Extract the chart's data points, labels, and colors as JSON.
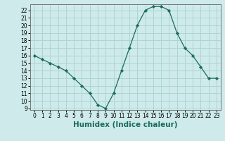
{
  "x": [
    0,
    1,
    2,
    3,
    4,
    5,
    6,
    7,
    8,
    9,
    10,
    11,
    12,
    13,
    14,
    15,
    16,
    17,
    18,
    19,
    20,
    21,
    22,
    23
  ],
  "y": [
    16,
    15.5,
    15,
    14.5,
    14,
    13,
    12,
    11,
    9.5,
    9,
    11,
    14,
    17,
    20,
    22,
    22.5,
    22.5,
    22,
    19,
    17,
    16,
    14.5,
    13,
    13
  ],
  "line_color": "#1a6b5a",
  "marker": "D",
  "marker_size": 2.2,
  "bg_color": "#ceeaea",
  "grid_color": "#aed4d4",
  "xlabel": "Humidex (Indice chaleur)",
  "ylim_min": 9,
  "ylim_max": 22.5,
  "xlim_min": -0.5,
  "xlim_max": 23.5,
  "yticks": [
    9,
    10,
    11,
    12,
    13,
    14,
    15,
    16,
    17,
    18,
    19,
    20,
    21,
    22
  ],
  "xticks": [
    0,
    1,
    2,
    3,
    4,
    5,
    6,
    7,
    8,
    9,
    10,
    11,
    12,
    13,
    14,
    15,
    16,
    17,
    18,
    19,
    20,
    21,
    22,
    23
  ],
  "tick_fontsize": 5.5,
  "xlabel_fontsize": 7.5
}
